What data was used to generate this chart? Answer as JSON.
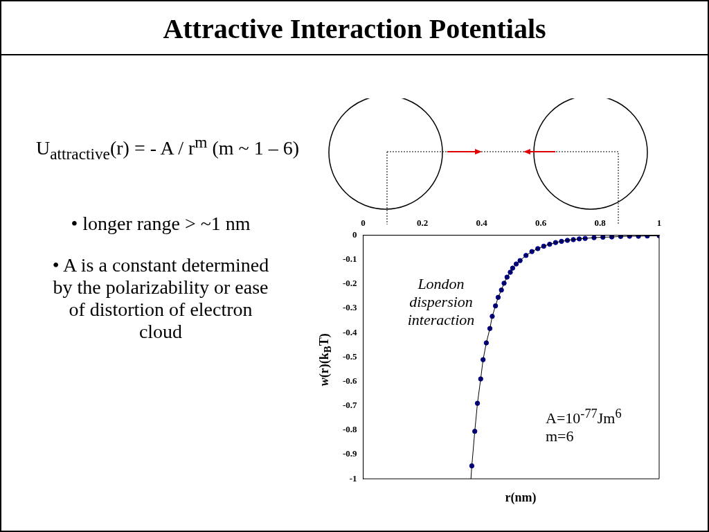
{
  "chart_data": {
    "type": "scatter",
    "title": "Attractive Interaction Potentials",
    "xlabel": "r(nm)",
    "ylabel": "w(r)(k$_{B}$T)",
    "x": [
      0.367,
      0.377,
      0.386,
      0.397,
      0.405,
      0.416,
      0.428,
      0.436,
      0.447,
      0.456,
      0.467,
      0.476,
      0.486,
      0.497,
      0.505,
      0.517,
      0.53,
      0.55,
      0.57,
      0.59,
      0.61,
      0.63,
      0.65,
      0.67,
      0.69,
      0.71,
      0.73,
      0.75,
      0.78,
      0.81,
      0.84,
      0.87,
      0.9,
      0.93,
      0.96,
      1.0
    ],
    "series": [
      {
        "type": "line",
        "color": "#000000",
        "marker": "none",
        "x": [
          0.364,
          0.367,
          0.377,
          0.386,
          0.397,
          0.405,
          0.416,
          0.428,
          0.436,
          0.447,
          0.456,
          0.467,
          0.476,
          0.486,
          0.497,
          0.505,
          0.517,
          0.53,
          0.55,
          0.57,
          0.59,
          0.61,
          0.63,
          0.65,
          0.67,
          0.69,
          0.71,
          0.73,
          0.75,
          0.78,
          0.81,
          0.84,
          0.87,
          0.9,
          0.93,
          0.96,
          1.0
        ],
        "values": [
          -1,
          -0.947,
          -0.805,
          -0.69,
          -0.59,
          -0.511,
          -0.442,
          -0.383,
          -0.333,
          -0.29,
          -0.255,
          -0.225,
          -0.197,
          -0.172,
          -0.152,
          -0.135,
          -0.118,
          -0.104,
          -0.083,
          -0.067,
          -0.055,
          -0.045,
          -0.037,
          -0.03,
          -0.025,
          -0.021,
          -0.018,
          -0.015,
          -0.013,
          -0.01,
          -0.008,
          -0.007,
          -0.005,
          -0.004,
          -0.004,
          -0.003,
          -0.002
        ]
      },
      {
        "type": "scatter",
        "color": "#00008b",
        "marker": "circle",
        "values": [
          -0.947,
          -0.805,
          -0.69,
          -0.59,
          -0.511,
          -0.442,
          -0.383,
          -0.333,
          -0.29,
          -0.255,
          -0.225,
          -0.197,
          -0.172,
          -0.152,
          -0.135,
          -0.118,
          -0.104,
          -0.083,
          -0.067,
          -0.055,
          -0.045,
          -0.037,
          -0.03,
          -0.025,
          -0.021,
          -0.018,
          -0.015,
          -0.013,
          -0.01,
          -0.008,
          -0.007,
          -0.005,
          -0.004,
          -0.004,
          -0.003,
          -0.002
        ]
      }
    ],
    "xlim": [
      0,
      1
    ],
    "xticks": [
      0,
      0.2,
      0.4,
      0.6,
      0.8,
      1
    ],
    "ylim": [
      -1,
      0
    ],
    "yticks": [
      0,
      -0.1,
      -0.2,
      -0.3,
      -0.4,
      -0.5,
      -0.6,
      -0.7,
      -0.8,
      -0.9,
      -1
    ],
    "grid": false,
    "legend": false,
    "annotations": [
      "U$_{attractive}$(r) = - A / r$^{m}$ (m ~ 1 – 6)",
      "• longer range > ~1 nm",
      "• A is a constant determined by the polarizability or ease of distortion of electron cloud",
      "London dispersion interaction",
      "A=10$^{-77}$Jm$^{6}$",
      "m=6"
    ]
  }
}
